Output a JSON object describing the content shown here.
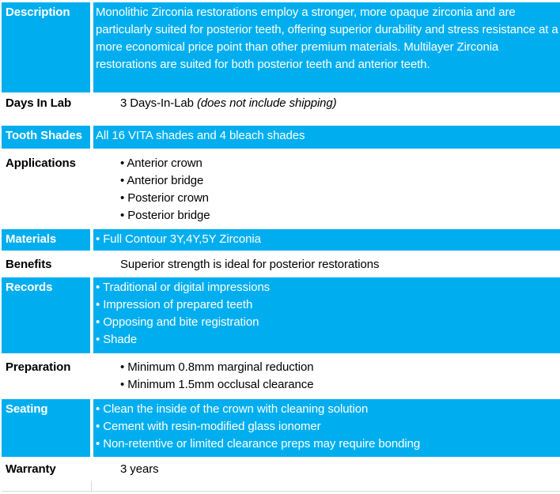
{
  "accent_color": "#00AEEF",
  "border_color": "#d9d9d9",
  "rows": [
    {
      "label": "Description",
      "text": "Monolithic Zirconia restorations employ a stronger, more opaque zirconia and are particularly suited for posterior teeth, offering superior durability and stress resistance at a more economical price point than other premium materials. Multilayer Zirconia restorations are suited for both posterior teeth and anterior teeth."
    },
    {
      "label": "Days In Lab",
      "text": "3 Days-In-Lab ",
      "text_italic": "(does not include shipping)"
    },
    {
      "label": "Tooth Shades",
      "text": "All 16 VITA shades and 4 bleach shades"
    },
    {
      "label": "Applications",
      "items": [
        "• Anterior crown",
        "• Anterior bridge",
        "• Posterior crown",
        "• Posterior bridge"
      ]
    },
    {
      "label": "Materials",
      "items": [
        "• Full Contour 3Y,4Y,5Y Zirconia"
      ]
    },
    {
      "label": "Benefits",
      "text": "Superior strength is ideal for posterior restorations"
    },
    {
      "label": "Records",
      "items": [
        "• Traditional or digital impressions",
        "• Impression of prepared teeth",
        "• Opposing and bite registration",
        "• Shade"
      ]
    },
    {
      "label": "Preparation",
      "items": [
        "• Minimum 0.8mm marginal reduction",
        "• Minimum 1.5mm occlusal clearance"
      ]
    },
    {
      "label": "Seating",
      "items": [
        "• Clean the inside of the crown with cleaning solution",
        "• Cement with resin-modified glass ionomer",
        "• Non-retentive or limited clearance preps may require bonding"
      ]
    },
    {
      "label": "Warranty",
      "text": "3 years"
    }
  ]
}
